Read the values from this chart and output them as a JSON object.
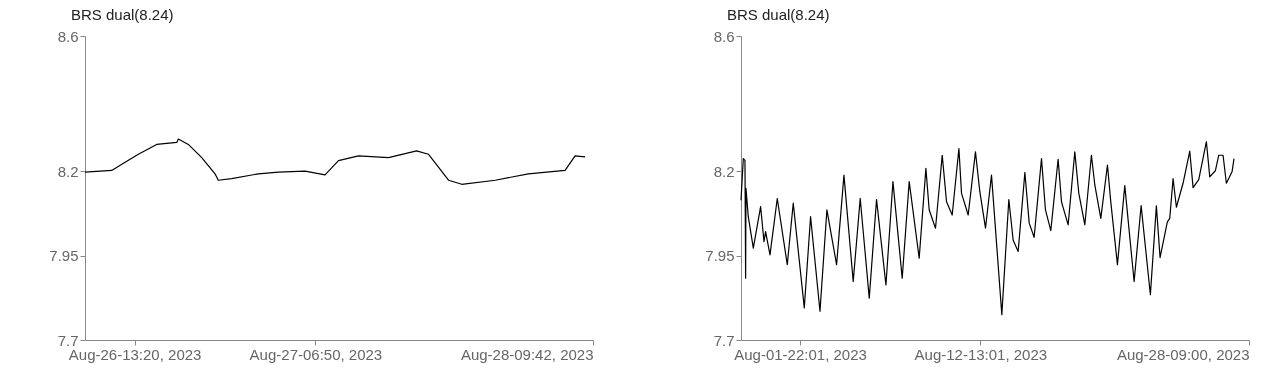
{
  "chart_data": [
    {
      "type": "line",
      "title": "BRS dual(8.24)",
      "color": "#000000",
      "grid": false,
      "xlim": [
        "2023-08-26T08:32",
        "2023-08-28T09:42"
      ],
      "xticks": [
        {
          "value": "2023-08-26T13:20",
          "label": "Aug-26-13:20, 2023"
        },
        {
          "value": "2023-08-27T06:50",
          "label": "Aug-27-06:50, 2023"
        },
        {
          "value": "2023-08-28T09:42",
          "label": "Aug-28-09:42, 2023"
        }
      ],
      "ylim": [
        7.7,
        8.6
      ],
      "yticks": [
        7.7,
        7.95,
        8.2,
        8.6
      ],
      "x": [
        "2023-08-26T08:32",
        "2023-08-26T11:07",
        "2023-08-26T12:25",
        "2023-08-26T13:42",
        "2023-08-26T15:28",
        "2023-08-26T17:25",
        "2023-08-26T17:34",
        "2023-08-26T18:32",
        "2023-08-26T19:50",
        "2023-08-26T21:07",
        "2023-08-26T21:26",
        "2023-08-26T22:44",
        "2023-08-27T01:19",
        "2023-08-27T03:15",
        "2023-08-27T05:50",
        "2023-08-27T07:46",
        "2023-08-27T09:04",
        "2023-08-27T11:00",
        "2023-08-27T13:54",
        "2023-08-27T16:38",
        "2023-08-27T17:46",
        "2023-08-27T19:43",
        "2023-08-27T21:00",
        "2023-08-28T00:14",
        "2023-08-28T03:27",
        "2023-08-28T07:00",
        "2023-08-28T07:58",
        "2023-08-28T08:56"
      ],
      "values": [
        8.197,
        8.202,
        8.226,
        8.25,
        8.279,
        8.285,
        8.295,
        8.279,
        8.24,
        8.192,
        8.173,
        8.178,
        8.192,
        8.197,
        8.2,
        8.189,
        8.231,
        8.245,
        8.24,
        8.26,
        8.25,
        8.173,
        8.161,
        8.173,
        8.192,
        8.202,
        8.245,
        8.242
      ]
    },
    {
      "type": "line",
      "title": "BRS dual(8.24)",
      "color": "#000000",
      "grid": false,
      "xlim": [
        "2023-07-29T10:31",
        "2023-08-28T09:00"
      ],
      "xticks": [
        {
          "value": "2023-08-01T22:01",
          "label": "Aug-01-22:01, 2023"
        },
        {
          "value": "2023-08-12T13:01",
          "label": "Aug-12-13:01, 2023"
        },
        {
          "value": "2023-08-28T09:00",
          "label": "Aug-28-09:00, 2023"
        }
      ],
      "ylim": [
        7.7,
        8.6
      ],
      "yticks": [
        7.7,
        7.95,
        8.2,
        8.6
      ],
      "x": [
        "2023-07-29T10:31",
        "2023-07-29T13:46",
        "2023-07-29T16:07",
        "2023-07-29T17:04",
        "2023-07-29T17:32",
        "2023-07-29T20:49",
        "2023-07-30T03:55",
        "2023-07-30T14:16",
        "2023-07-30T19:01",
        "2023-07-30T21:19",
        "2023-07-31T03:31",
        "2023-07-31T13:49",
        "2023-08-01T03:58",
        "2023-08-01T12:25",
        "2023-08-02T04:01",
        "2023-08-02T12:55",
        "2023-08-03T02:13",
        "2023-08-03T12:01",
        "2023-08-04T01:43",
        "2023-08-04T12:07",
        "2023-08-05T01:13",
        "2023-08-05T11:07",
        "2023-08-05T23:55",
        "2023-08-06T10:13",
        "2023-08-06T23:31",
        "2023-08-07T09:25",
        "2023-08-07T22:31",
        "2023-08-08T08:25",
        "2023-08-08T22:31",
        "2023-08-09T08:01",
        "2023-08-09T12:43",
        "2023-08-09T21:37",
        "2023-08-10T07:07",
        "2023-08-10T13:13",
        "2023-08-10T21:13",
        "2023-08-11T06:43",
        "2023-08-11T10:25",
        "2023-08-11T19:49",
        "2023-08-12T06:07",
        "2023-08-12T12:19",
        "2023-08-12T20:19",
        "2023-08-13T04:49",
        "2023-08-13T19:25",
        "2023-08-14T05:19",
        "2023-08-14T11:25",
        "2023-08-14T18:31",
        "2023-08-15T04:01",
        "2023-08-15T10:07",
        "2023-08-15T17:07",
        "2023-08-16T03:31",
        "2023-08-16T09:07",
        "2023-08-16T16:43",
        "2023-08-17T03:01",
        "2023-08-17T07:49",
        "2023-08-17T17:13",
        "2023-08-18T02:37",
        "2023-08-18T08:19",
        "2023-08-18T16:49",
        "2023-08-19T02:07",
        "2023-08-19T06:55",
        "2023-08-19T15:25",
        "2023-08-20T00:49",
        "2023-08-20T05:31",
        "2023-08-20T14:55",
        "2023-08-21T01:19",
        "2023-08-21T14:31",
        "2023-08-22T00:25",
        "2023-08-22T13:31",
        "2023-08-22T22:01",
        "2023-08-23T03:13",
        "2023-08-23T13:31",
        "2023-08-23T16:55",
        "2023-08-23T21:37",
        "2023-08-24T02:19",
        "2023-08-24T11:43",
        "2023-08-24T21:13",
        "2023-08-25T01:55",
        "2023-08-25T09:55",
        "2023-08-25T20:43",
        "2023-08-26T01:31",
        "2023-08-26T09:25",
        "2023-08-26T14:13",
        "2023-08-26T20:19",
        "2023-08-27T01:01",
        "2023-08-27T09:01",
        "2023-08-27T11:49"
      ],
      "values": [
        8.114,
        8.237,
        8.232,
        7.883,
        8.149,
        8.065,
        7.972,
        8.095,
        7.991,
        8.021,
        7.952,
        8.119,
        7.923,
        8.105,
        7.795,
        8.065,
        7.785,
        8.085,
        7.923,
        8.188,
        7.873,
        8.119,
        7.824,
        8.116,
        7.863,
        8.169,
        7.883,
        8.169,
        7.942,
        8.208,
        8.085,
        8.031,
        8.247,
        8.109,
        8.07,
        8.267,
        8.134,
        8.07,
        8.257,
        8.139,
        8.031,
        8.188,
        7.775,
        8.116,
        7.996,
        7.962,
        8.196,
        8.046,
        8.004,
        8.237,
        8.085,
        8.024,
        8.235,
        8.109,
        8.041,
        8.257,
        8.134,
        8.041,
        8.247,
        8.159,
        8.06,
        8.218,
        8.109,
        7.923,
        8.157,
        7.873,
        8.098,
        7.834,
        8.097,
        7.944,
        8.05,
        8.06,
        8.178,
        8.093,
        8.164,
        8.259,
        8.151,
        8.175,
        8.287,
        8.183,
        8.201,
        8.247,
        8.247,
        8.164,
        8.198,
        8.237
      ]
    }
  ]
}
